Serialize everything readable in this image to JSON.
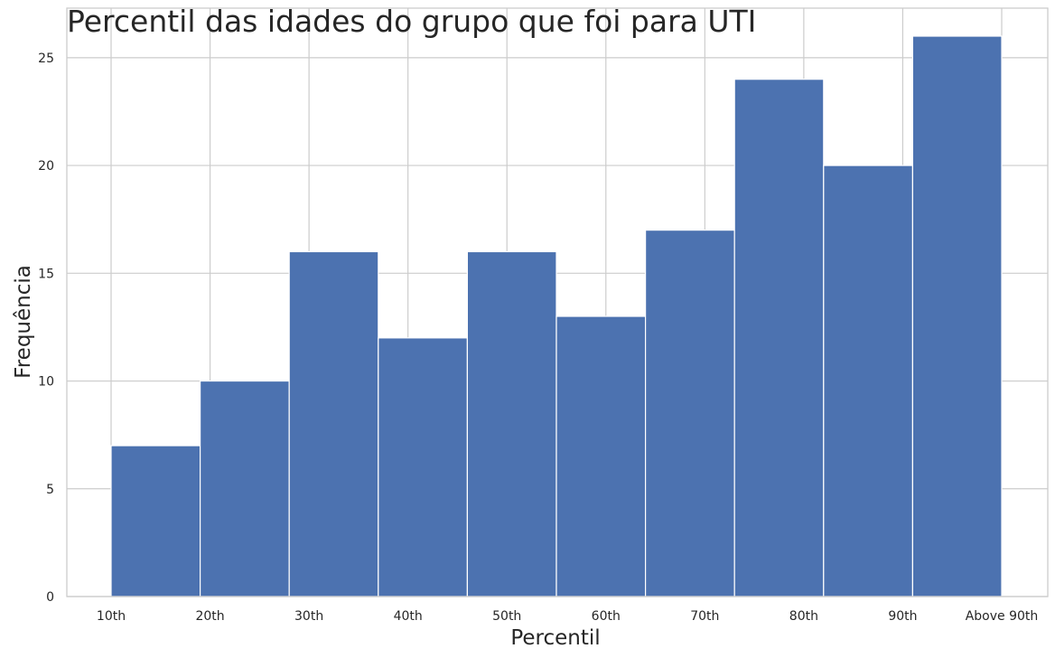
{
  "chart_data": {
    "type": "bar",
    "title": "Percentil das idades do grupo que foi para UTI",
    "xlabel": "Percentil",
    "ylabel": "Frequência",
    "categories": [
      "10th",
      "20th",
      "30th",
      "40th",
      "50th",
      "60th",
      "70th",
      "80th",
      "90th",
      "Above 90th"
    ],
    "bin_count": 10,
    "values": [
      7,
      10,
      16,
      12,
      16,
      13,
      17,
      24,
      20,
      26
    ],
    "yticks": [
      0,
      5,
      10,
      15,
      20,
      25
    ],
    "ylim": [
      0,
      27.3
    ],
    "grid": true,
    "bar_color": "#4c72b0"
  }
}
